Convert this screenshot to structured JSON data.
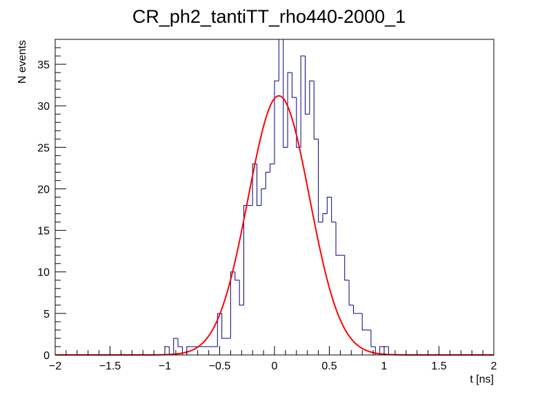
{
  "chart_data": {
    "type": "bar",
    "title": "CR_ph2_tantiTT_rho440-2000_1",
    "xlabel": "t [ns]",
    "ylabel": "N events",
    "xlim": [
      -2,
      2
    ],
    "ylim": [
      0,
      38
    ],
    "grid": false,
    "legend": "none",
    "x_ticks": [
      -2,
      -1.5,
      -1,
      -0.5,
      0,
      0.5,
      1,
      1.5,
      2
    ],
    "x_tick_labels": [
      "−2",
      "−1.5",
      "−1",
      "−0.5",
      "0",
      "0.5",
      "1",
      "1.5",
      "2"
    ],
    "y_ticks": [
      0,
      5,
      10,
      15,
      20,
      25,
      30,
      35
    ],
    "y_tick_labels": [
      "0",
      "5",
      "10",
      "15",
      "20",
      "25",
      "30",
      "35"
    ],
    "bin_width": 0.04,
    "histogram": {
      "bin_edges_start": -1.0,
      "values": [
        1,
        0,
        2,
        1,
        0,
        1,
        1,
        1,
        1,
        1,
        1,
        1,
        5,
        2,
        2,
        10,
        9,
        6,
        18,
        18,
        23,
        18,
        20,
        22,
        23,
        33,
        39,
        25,
        34,
        31,
        25,
        36,
        29,
        33,
        26,
        16,
        17,
        19,
        16,
        12,
        12,
        9,
        6,
        5,
        5,
        3,
        3,
        1,
        0,
        1,
        1,
        0,
        0
      ]
    },
    "fit": {
      "type": "gaussian",
      "amplitude": 31.2,
      "mean": 0.04,
      "sigma": 0.28
    },
    "colors": {
      "histogram": "#000080",
      "fit": "#ff0000",
      "frame": "#000000",
      "background": "#ffffff"
    }
  }
}
